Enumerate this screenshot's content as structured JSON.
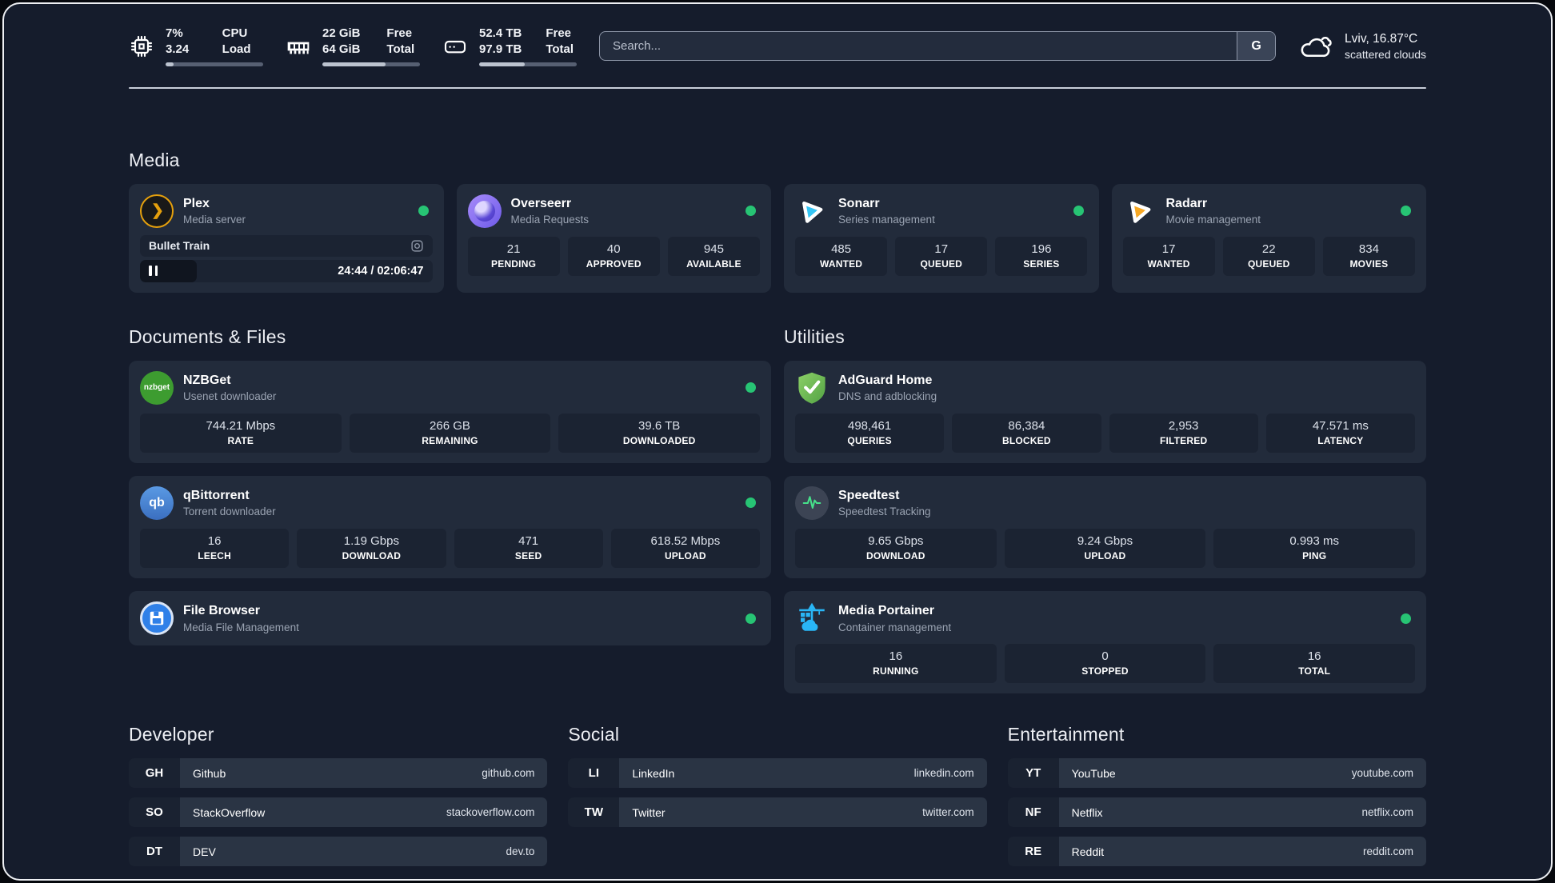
{
  "colors": {
    "background": "#151c2c",
    "card": "#222b3b",
    "tile": "#1b2332",
    "online_dot": "#27c474",
    "plex_amber": "#e5a00d",
    "sonarr_blue": "#35c5f4",
    "radarr_yellow": "#f7a824",
    "adguard_green": "#68bd49",
    "nzbget_green": "#3d9c30",
    "qbittorrent_blue": "#4281d8",
    "portainer_blue": "#29b6f6",
    "speedtest_pulse": "#46e08a",
    "overseerr_purple": "#8b7cf6"
  },
  "header": {
    "cpu": {
      "value_top": "7%",
      "value_bottom": "3.24",
      "label_top": "CPU",
      "label_bottom": "Load",
      "progress": 8
    },
    "memory": {
      "value_top": "22 GiB",
      "value_bottom": "64 GiB",
      "label_top": "Free",
      "label_bottom": "Total",
      "progress": 65
    },
    "disk": {
      "value_top": "52.4 TB",
      "value_bottom": "97.9 TB",
      "label_top": "Free",
      "label_bottom": "Total",
      "progress": 47
    },
    "search": {
      "placeholder": "Search...",
      "button_label": "G"
    },
    "weather": {
      "summary": "Lviv, 16.87°C",
      "condition": "scattered clouds"
    }
  },
  "sections": {
    "media": {
      "title": "Media",
      "apps": [
        {
          "name": "Plex",
          "subtitle": "Media server",
          "online": true,
          "player": {
            "title": "Bullet Train",
            "time": "24:44 / 02:06:47",
            "progress": 19.5
          }
        },
        {
          "name": "Overseerr",
          "subtitle": "Media Requests",
          "online": true,
          "stats": [
            {
              "value": "21",
              "label": "PENDING"
            },
            {
              "value": "40",
              "label": "APPROVED"
            },
            {
              "value": "945",
              "label": "AVAILABLE"
            }
          ]
        },
        {
          "name": "Sonarr",
          "subtitle": "Series management",
          "online": true,
          "stats": [
            {
              "value": "485",
              "label": "WANTED"
            },
            {
              "value": "17",
              "label": "QUEUED"
            },
            {
              "value": "196",
              "label": "SERIES"
            }
          ]
        },
        {
          "name": "Radarr",
          "subtitle": "Movie management",
          "online": true,
          "stats": [
            {
              "value": "17",
              "label": "WANTED"
            },
            {
              "value": "22",
              "label": "QUEUED"
            },
            {
              "value": "834",
              "label": "MOVIES"
            }
          ]
        }
      ]
    },
    "documents": {
      "title": "Documents & Files",
      "apps": [
        {
          "name": "NZBGet",
          "subtitle": "Usenet downloader",
          "online": true,
          "stats": [
            {
              "value": "744.21 Mbps",
              "label": "RATE"
            },
            {
              "value": "266 GB",
              "label": "REMAINING"
            },
            {
              "value": "39.6 TB",
              "label": "DOWNLOADED"
            }
          ]
        },
        {
          "name": "qBittorrent",
          "subtitle": "Torrent downloader",
          "online": true,
          "stats": [
            {
              "value": "16",
              "label": "LEECH"
            },
            {
              "value": "1.19 Gbps",
              "label": "DOWNLOAD"
            },
            {
              "value": "471",
              "label": "SEED"
            },
            {
              "value": "618.52 Mbps",
              "label": "UPLOAD"
            }
          ]
        },
        {
          "name": "File Browser",
          "subtitle": "Media File Management",
          "online": true,
          "stats": []
        }
      ]
    },
    "utilities": {
      "title": "Utilities",
      "apps": [
        {
          "name": "AdGuard Home",
          "subtitle": "DNS and adblocking",
          "online": false,
          "stats": [
            {
              "value": "498,461",
              "label": "QUERIES"
            },
            {
              "value": "86,384",
              "label": "BLOCKED"
            },
            {
              "value": "2,953",
              "label": "FILTERED"
            },
            {
              "value": "47.571 ms",
              "label": "LATENCY"
            }
          ]
        },
        {
          "name": "Speedtest",
          "subtitle": "Speedtest Tracking",
          "online": false,
          "stats": [
            {
              "value": "9.65 Gbps",
              "label": "DOWNLOAD"
            },
            {
              "value": "9.24 Gbps",
              "label": "UPLOAD"
            },
            {
              "value": "0.993 ms",
              "label": "PING"
            }
          ]
        },
        {
          "name": "Media Portainer",
          "subtitle": "Container management",
          "online": true,
          "stats": [
            {
              "value": "16",
              "label": "RUNNING"
            },
            {
              "value": "0",
              "label": "STOPPED"
            },
            {
              "value": "16",
              "label": "TOTAL"
            }
          ]
        }
      ]
    },
    "bookmarks": [
      {
        "title": "Developer",
        "items": [
          {
            "abbr": "GH",
            "name": "Github",
            "url": "github.com"
          },
          {
            "abbr": "SO",
            "name": "StackOverflow",
            "url": "stackoverflow.com"
          },
          {
            "abbr": "DT",
            "name": "DEV",
            "url": "dev.to"
          }
        ]
      },
      {
        "title": "Social",
        "items": [
          {
            "abbr": "LI",
            "name": "LinkedIn",
            "url": "linkedin.com"
          },
          {
            "abbr": "TW",
            "name": "Twitter",
            "url": "twitter.com"
          }
        ]
      },
      {
        "title": "Entertainment",
        "items": [
          {
            "abbr": "YT",
            "name": "YouTube",
            "url": "youtube.com"
          },
          {
            "abbr": "NF",
            "name": "Netflix",
            "url": "netflix.com"
          },
          {
            "abbr": "RE",
            "name": "Reddit",
            "url": "reddit.com"
          }
        ]
      }
    ]
  }
}
